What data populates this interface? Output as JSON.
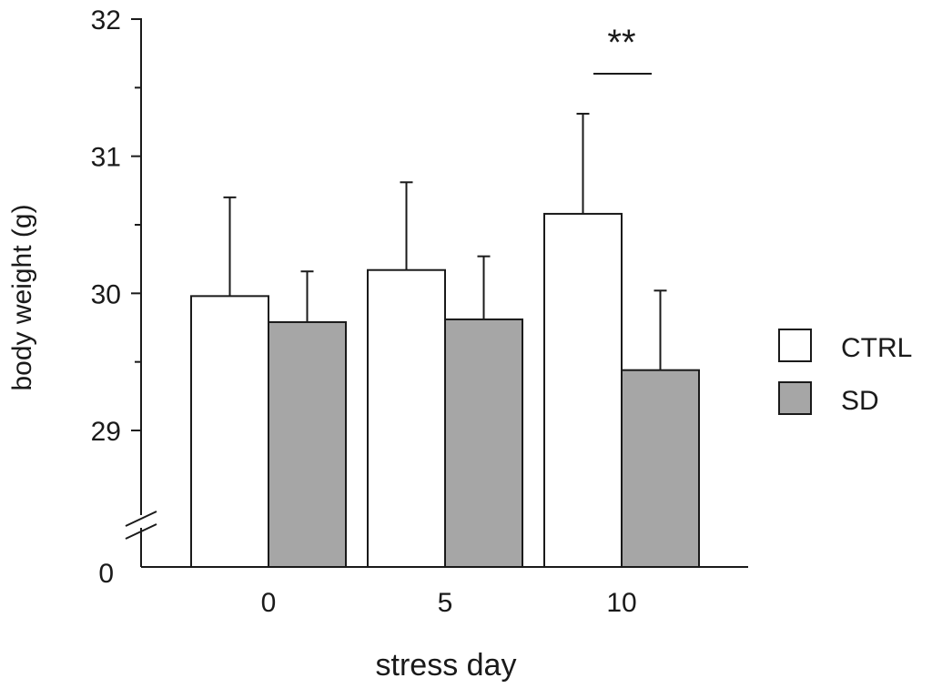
{
  "chart_data": {
    "type": "bar",
    "title": "",
    "xlabel": "stress day",
    "ylabel": "body weight (g)",
    "categories": [
      "0",
      "5",
      "10"
    ],
    "series": [
      {
        "name": "CTRL",
        "color": "#ffffff",
        "values": [
          29.98,
          30.17,
          30.58
        ],
        "errors": [
          0.72,
          0.64,
          0.73
        ]
      },
      {
        "name": "SD",
        "color": "#a6a6a6",
        "values": [
          29.79,
          29.81,
          29.44
        ],
        "errors": [
          0.37,
          0.46,
          0.58
        ]
      }
    ],
    "ylim": [
      29,
      32
    ],
    "y_major_ticks": [
      29,
      30,
      31,
      32
    ],
    "y_minor_step": 0.5,
    "y_break": true,
    "y_baseline_label": "0",
    "legend_position": "right",
    "grid": false,
    "annotations": [
      {
        "text": "**",
        "category": "10",
        "type": "significance"
      }
    ]
  }
}
